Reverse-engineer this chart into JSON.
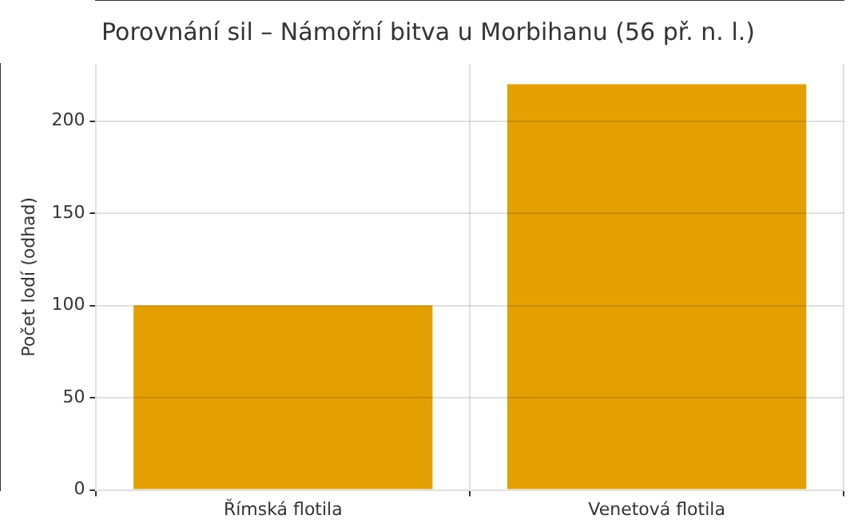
{
  "chart_data": {
    "type": "bar",
    "title": "Porovnání sil – Námořní bitva u Morbihanu (56 př. n. l.)",
    "ylabel": "Počet lodí (odhad)",
    "categories": [
      "Římská flotila",
      "Venetová flotila"
    ],
    "values": [
      100,
      220
    ],
    "color": "#e3a000",
    "ylim": [
      0,
      231
    ],
    "yticks": [
      0,
      50,
      100,
      150,
      200
    ],
    "grid": true
  }
}
